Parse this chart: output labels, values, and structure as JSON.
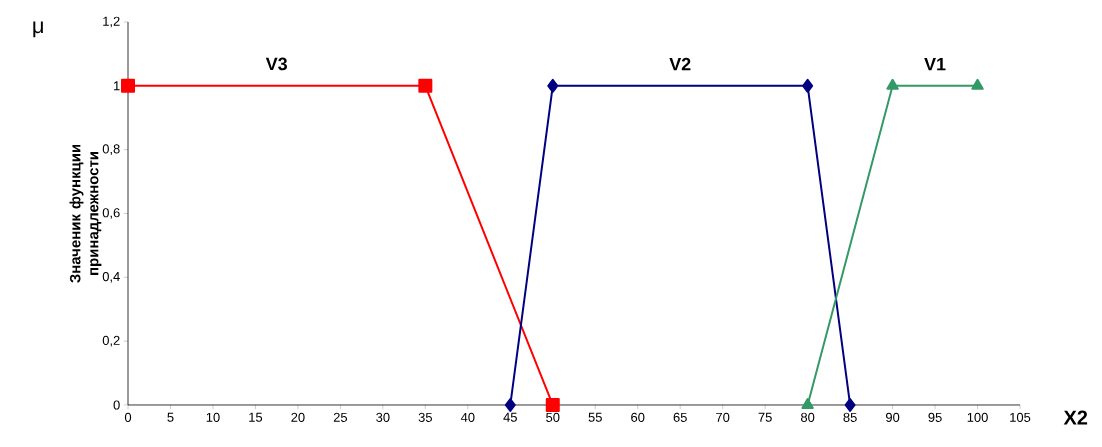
{
  "chart_data": {
    "type": "line",
    "xlabel": "X2",
    "ylabel": "Значеник функции принадлежности",
    "annotations": [
      "μ"
    ],
    "xlim": [
      0,
      105
    ],
    "xticks": [
      0,
      5,
      10,
      15,
      20,
      25,
      30,
      35,
      40,
      45,
      50,
      55,
      60,
      65,
      70,
      75,
      80,
      85,
      90,
      95,
      100,
      105
    ],
    "ylim": [
      0,
      1.2
    ],
    "yticks": [
      0,
      {
        "value": 0.2,
        "label": "0,2"
      },
      {
        "value": 0.4,
        "label": "0,4"
      },
      {
        "value": 0.6,
        "label": "0,6"
      },
      {
        "value": 0.8,
        "label": "0,8"
      },
      1,
      {
        "value": 1.2,
        "label": "1,2"
      }
    ],
    "grid": false,
    "line_style": "solid",
    "series": [
      {
        "name": "V3",
        "color": "#ff0000",
        "marker": "square",
        "x": [
          0,
          35,
          50
        ],
        "values": [
          1,
          1,
          0
        ]
      },
      {
        "name": "V2",
        "color": "#000080",
        "marker": "diamond",
        "x": [
          45,
          50,
          80,
          85
        ],
        "values": [
          0,
          1,
          1,
          0
        ]
      },
      {
        "name": "V1",
        "color": "#339966",
        "marker": "triangle",
        "x": [
          80,
          90,
          100
        ],
        "values": [
          0,
          1,
          1
        ]
      }
    ]
  }
}
